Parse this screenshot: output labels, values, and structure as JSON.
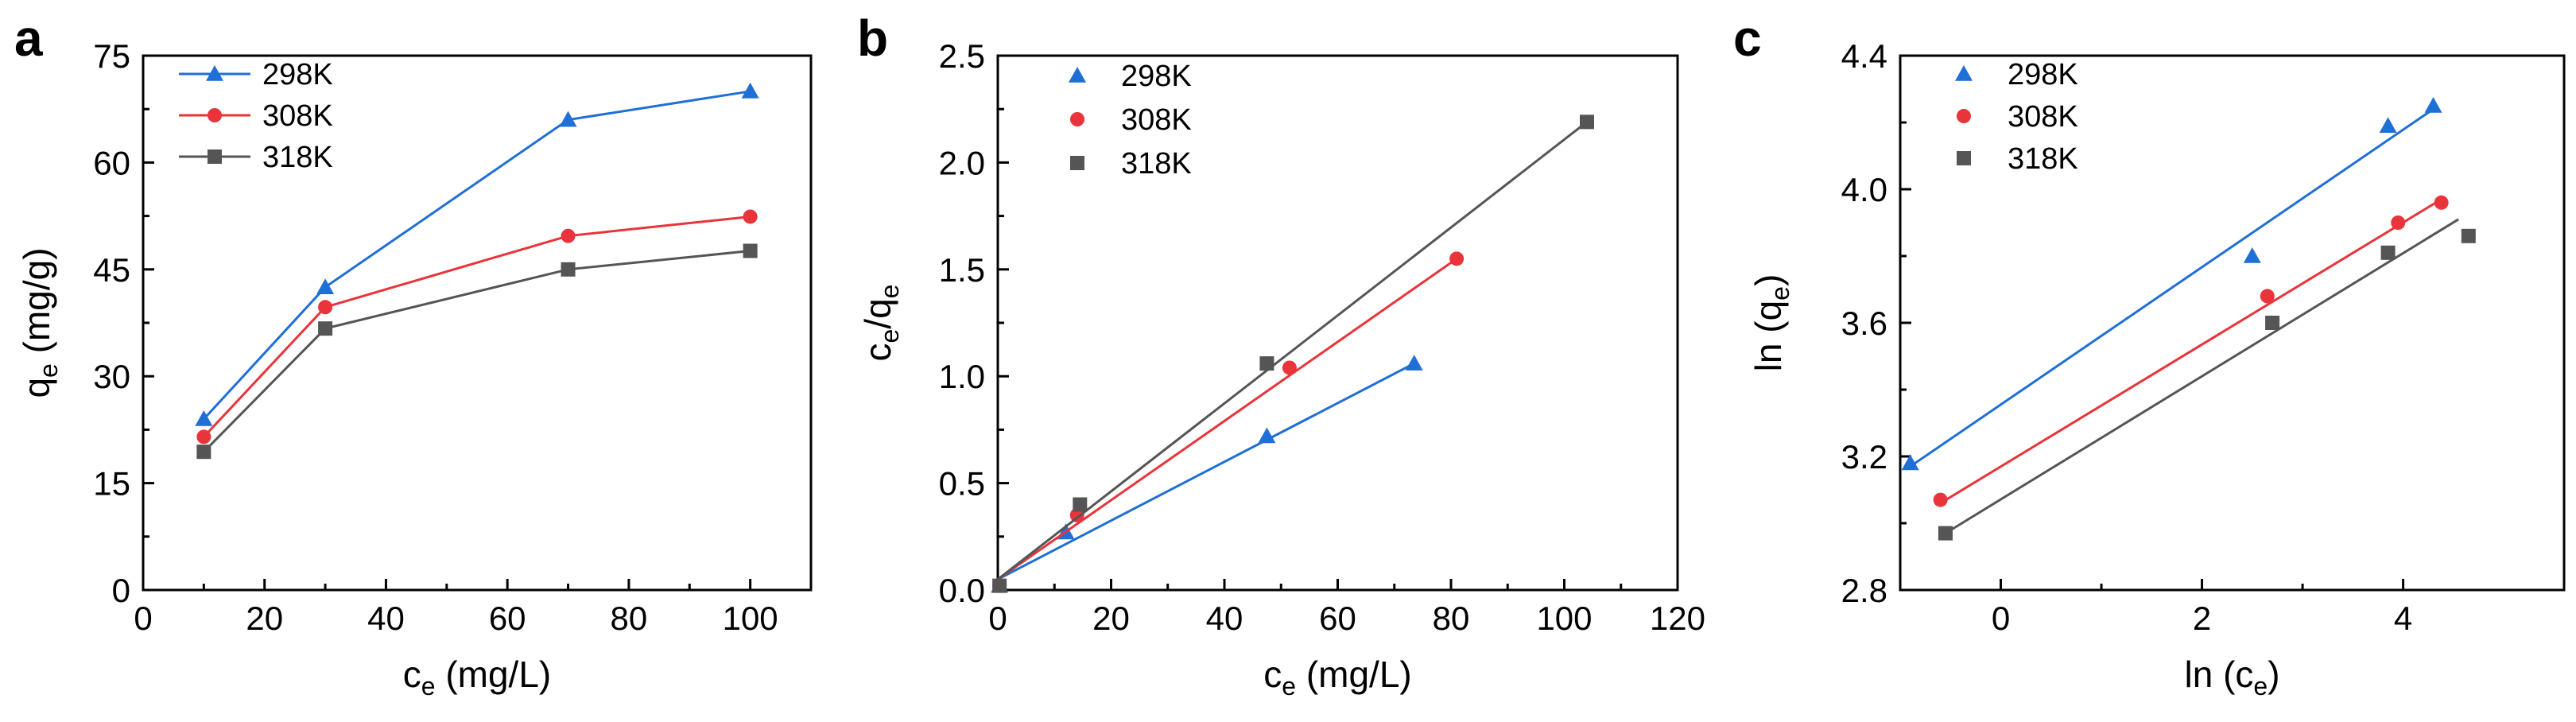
{
  "chart_data": [
    {
      "panel": "a",
      "type": "line",
      "xlabel": {
        "main": "c",
        "sub": "e",
        "unit": " (mg/L)"
      },
      "ylabel": {
        "main": "q",
        "sub": "e",
        "unit": " (mg/g)"
      },
      "xlim": [
        0,
        110
      ],
      "ylim": [
        0,
        75
      ],
      "xticks": [
        0,
        20,
        40,
        60,
        80,
        100
      ],
      "yticks": [
        0,
        15,
        30,
        45,
        60,
        75
      ],
      "series": [
        {
          "name": "298K",
          "color": "#1f6fd6",
          "marker": "triangle",
          "x": [
            10,
            30,
            70,
            100
          ],
          "y": [
            24,
            42.5,
            66,
            70
          ],
          "line": "connect"
        },
        {
          "name": "308K",
          "color": "#e8343a",
          "marker": "circle",
          "x": [
            10,
            30,
            70,
            100
          ],
          "y": [
            21.5,
            39.7,
            49.7,
            52.4
          ],
          "line": "connect"
        },
        {
          "name": "318K",
          "color": "#555555",
          "marker": "square",
          "x": [
            10,
            30,
            70,
            100
          ],
          "y": [
            19.4,
            36.7,
            45,
            47.6
          ],
          "line": "connect"
        }
      ]
    },
    {
      "panel": "b",
      "type": "scatter",
      "xlabel": {
        "main": "c",
        "sub": "e",
        "unit": " (mg/L)"
      },
      "ylabel": {
        "main": "c",
        "sub": "e",
        "mid": "/q",
        "sub2": "e",
        "unit": ""
      },
      "xlim": [
        0,
        120
      ],
      "ylim": [
        0,
        2.5
      ],
      "xticks": [
        0,
        20,
        40,
        60,
        80,
        100,
        120
      ],
      "yticks": [
        0.0,
        0.5,
        1.0,
        1.5,
        2.0,
        2.5
      ],
      "series": [
        {
          "name": "298K",
          "color": "#1f6fd6",
          "marker": "triangle",
          "x": [
            0.3,
            12,
            47.5,
            73.5
          ],
          "y": [
            0.02,
            0.27,
            0.72,
            1.06
          ],
          "fit": [
            [
              0,
              0.05
            ],
            [
              73.5,
              1.06
            ]
          ]
        },
        {
          "name": "308K",
          "color": "#e8343a",
          "marker": "circle",
          "x": [
            0.3,
            14,
            51.5,
            81
          ],
          "y": [
            0.02,
            0.35,
            1.04,
            1.55
          ],
          "fit": [
            [
              0,
              0.05
            ],
            [
              81,
              1.55
            ]
          ]
        },
        {
          "name": "318K",
          "color": "#555555",
          "marker": "square",
          "x": [
            0.3,
            14.5,
            47.5,
            104
          ],
          "y": [
            0.02,
            0.4,
            1.06,
            2.19
          ],
          "fit": [
            [
              0,
              0.05
            ],
            [
              104,
              2.19
            ]
          ]
        }
      ]
    },
    {
      "panel": "c",
      "type": "scatter",
      "xlabel": {
        "main": "ln (c",
        "sub": "e",
        "unit": ")"
      },
      "ylabel": {
        "main": "ln (q",
        "sub": "e",
        "unit": ")"
      },
      "xlim": [
        -1,
        5.6
      ],
      "ylim": [
        2.8,
        4.4
      ],
      "xticks": [
        0,
        2,
        4
      ],
      "yticks": [
        2.8,
        3.2,
        3.6,
        4.0,
        4.4
      ],
      "series": [
        {
          "name": "298K",
          "color": "#1f6fd6",
          "marker": "triangle",
          "x": [
            -0.9,
            2.5,
            3.85,
            4.3
          ],
          "y": [
            3.18,
            3.8,
            4.19,
            4.25
          ],
          "fit": [
            [
              -0.9,
              3.17
            ],
            [
              4.3,
              4.24
            ]
          ]
        },
        {
          "name": "308K",
          "color": "#e8343a",
          "marker": "circle",
          "x": [
            -0.6,
            2.65,
            3.95,
            4.38
          ],
          "y": [
            3.07,
            3.68,
            3.9,
            3.96
          ],
          "fit": [
            [
              -0.6,
              3.06
            ],
            [
              4.38,
              3.97
            ]
          ]
        },
        {
          "name": "318K",
          "color": "#555555",
          "marker": "square",
          "x": [
            -0.55,
            2.7,
            3.85,
            4.65
          ],
          "y": [
            2.97,
            3.6,
            3.81,
            3.86
          ],
          "fit": [
            [
              -0.55,
              2.97
            ],
            [
              4.55,
              3.91
            ]
          ]
        }
      ]
    }
  ]
}
